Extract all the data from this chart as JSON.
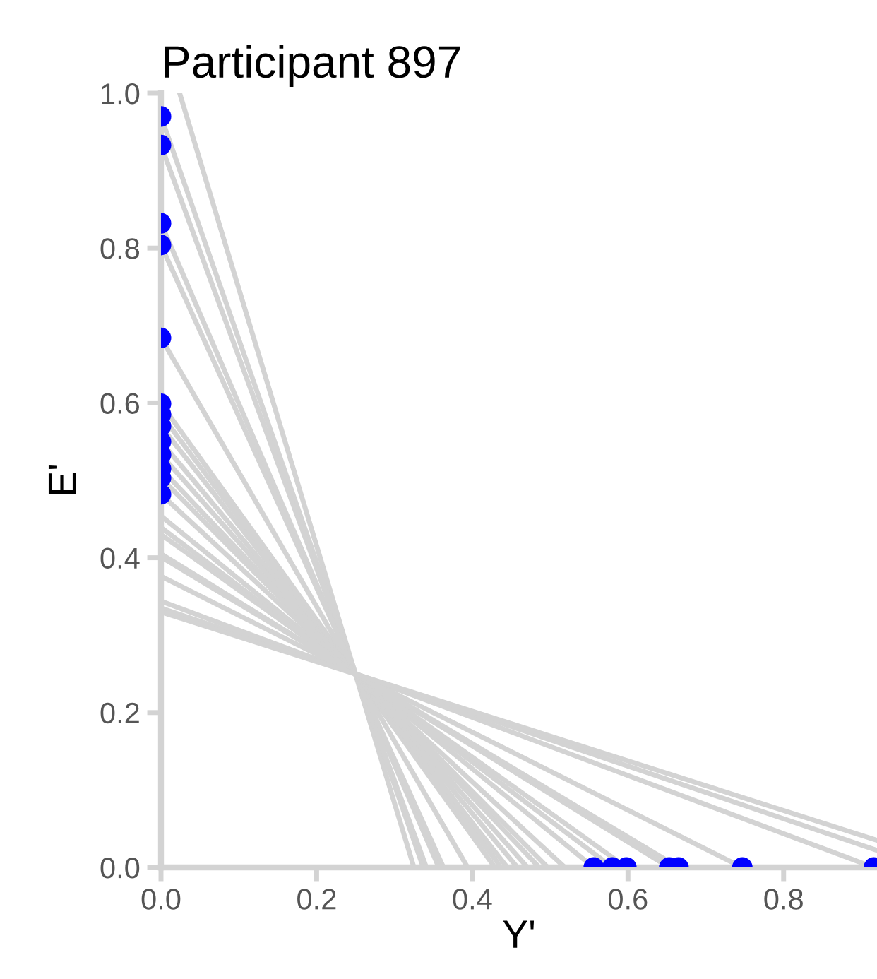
{
  "chart_data": {
    "type": "line",
    "title": "Participant 897",
    "xlabel": "Y'",
    "ylabel": "E'",
    "xlim": [
      0,
      0.92
    ],
    "ylim": [
      0,
      1.0
    ],
    "xticks": [
      {
        "value": 0,
        "label": "0.0"
      },
      0.2,
      0.4,
      0.6,
      0.8
    ],
    "yticks": [
      {
        "value": 0,
        "label": "0.0"
      },
      0.2,
      0.4,
      0.6,
      0.8,
      {
        "value": 1.0,
        "label": "1.0"
      }
    ],
    "grid": false,
    "legend": false,
    "line_style": "solid",
    "series": [
      {
        "color": "#d3d3d3",
        "x": [
          0.024,
          0.325
        ],
        "values": [
          1.0,
          0
        ]
      },
      {
        "color": "#d3d3d3",
        "x": [
          0,
          0.337
        ],
        "values": [
          0.97,
          0
        ]
      },
      {
        "color": "#d3d3d3",
        "x": [
          0,
          0.341
        ],
        "values": [
          0.933,
          0
        ]
      },
      {
        "color": "#d3d3d3",
        "x": [
          0,
          0.357
        ],
        "values": [
          0.832,
          0
        ]
      },
      {
        "color": "#d3d3d3",
        "x": [
          0,
          0.363
        ],
        "values": [
          0.804,
          0
        ]
      },
      {
        "color": "#d3d3d3",
        "x": [
          0,
          0.394
        ],
        "values": [
          0.684,
          0
        ]
      },
      {
        "color": "#d3d3d3",
        "x": [
          0,
          0.429
        ],
        "values": [
          0.599,
          0
        ]
      },
      {
        "color": "#d3d3d3",
        "x": [
          0,
          0.437
        ],
        "values": [
          0.585,
          0
        ]
      },
      {
        "color": "#d3d3d3",
        "x": [
          0,
          0.445
        ],
        "values": [
          0.57,
          0
        ]
      },
      {
        "color": "#d3d3d3",
        "x": [
          0,
          0.458
        ],
        "values": [
          0.55,
          0
        ]
      },
      {
        "color": "#d3d3d3",
        "x": [
          0,
          0.471
        ],
        "values": [
          0.533,
          0
        ]
      },
      {
        "color": "#d3d3d3",
        "x": [
          0,
          0.486
        ],
        "values": [
          0.515,
          0
        ]
      },
      {
        "color": "#d3d3d3",
        "x": [
          0,
          0.497
        ],
        "values": [
          0.503,
          0
        ]
      },
      {
        "color": "#d3d3d3",
        "x": [
          0,
          0.519
        ],
        "values": [
          0.482,
          0
        ]
      },
      {
        "color": "#d3d3d3",
        "x": [
          0,
          0.556
        ],
        "values": [
          0.454,
          0
        ]
      },
      {
        "color": "#d3d3d3",
        "x": [
          0,
          0.58
        ],
        "values": [
          0.439,
          0
        ]
      },
      {
        "color": "#d3d3d3",
        "x": [
          0,
          0.598
        ],
        "values": [
          0.43,
          0
        ]
      },
      {
        "color": "#d3d3d3",
        "x": [
          0,
          0.653
        ],
        "values": [
          0.405,
          0
        ]
      },
      {
        "color": "#d3d3d3",
        "x": [
          0,
          0.665
        ],
        "values": [
          0.401,
          0
        ]
      },
      {
        "color": "#d3d3d3",
        "x": [
          0,
          0.747
        ],
        "values": [
          0.376,
          0
        ]
      },
      {
        "color": "#d3d3d3",
        "x": [
          0,
          0.916
        ],
        "values": [
          0.344,
          0
        ]
      },
      {
        "color": "#d3d3d3",
        "x": [
          0,
          0.92
        ],
        "values": [
          0.335,
          0.022
        ]
      },
      {
        "color": "#d3d3d3",
        "x": [
          0,
          0.92
        ],
        "values": [
          0.33,
          0.035
        ]
      },
      {
        "type": "scatter",
        "color": "#0000ff",
        "marker": "circle",
        "x": [
          0,
          0,
          0,
          0,
          0,
          0,
          0,
          0,
          0,
          0,
          0,
          0,
          0,
          0.556,
          0.58,
          0.598,
          0.653,
          0.665,
          0.747,
          0.916
        ],
        "values": [
          0.97,
          0.933,
          0.832,
          0.804,
          0.684,
          0.599,
          0.585,
          0.57,
          0.55,
          0.533,
          0.515,
          0.503,
          0.482,
          0,
          0,
          0,
          0,
          0,
          0,
          0
        ]
      }
    ]
  }
}
